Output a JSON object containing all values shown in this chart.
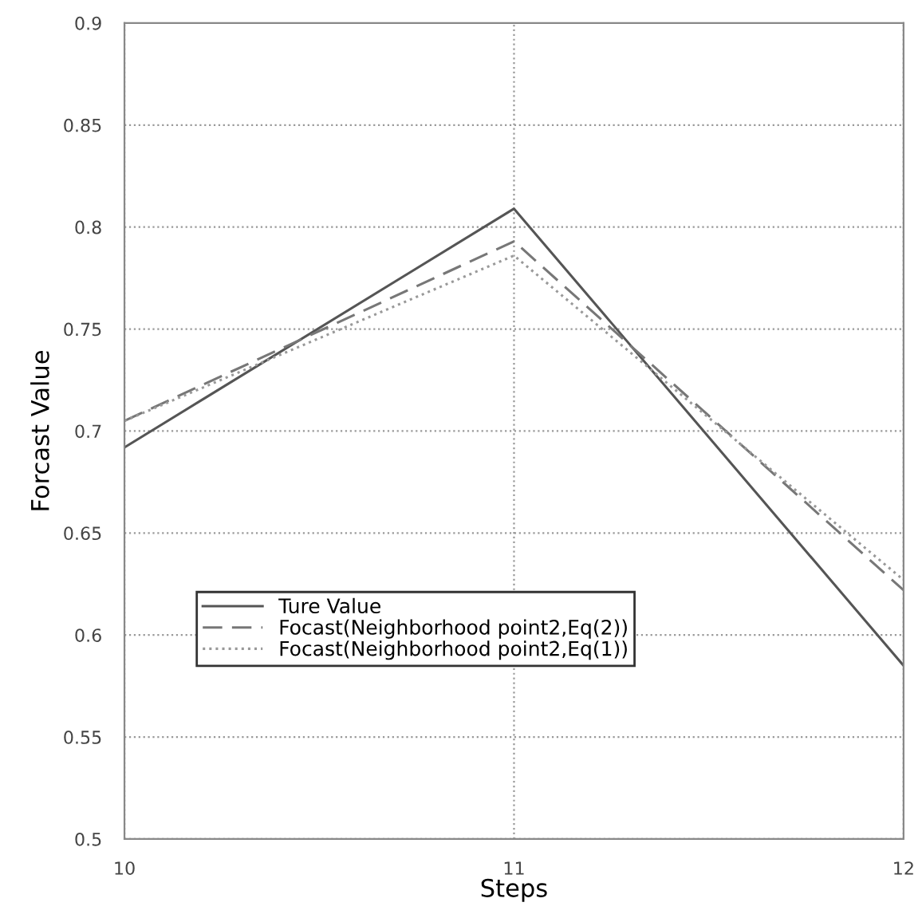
{
  "chart_data": {
    "type": "line",
    "xlabel": "Steps",
    "ylabel": "Forcast Value",
    "x": [
      10,
      11,
      12
    ],
    "xlim": [
      10,
      12
    ],
    "xticks": [
      10,
      11,
      12
    ],
    "ylim": [
      0.5,
      0.9
    ],
    "yticks": [
      0.5,
      0.55,
      0.6,
      0.65,
      0.7,
      0.75,
      0.8,
      0.85,
      0.9
    ],
    "grid": true,
    "legend": "lower left",
    "marker": "none",
    "series": [
      {
        "name": "Ture Value",
        "color": "#555555",
        "line_style": "solid",
        "values": [
          0.692,
          0.809,
          0.585
        ]
      },
      {
        "name": "Focast(Neighborhood point2,Eq(2))",
        "color": "#777777",
        "line_style": "dashed",
        "values": [
          0.705,
          0.793,
          0.622
        ]
      },
      {
        "name": "Focast(Neighborhood point2,Eq(1))",
        "color": "#999999",
        "line_style": "dotted",
        "values": [
          0.705,
          0.786,
          0.627
        ]
      }
    ]
  }
}
